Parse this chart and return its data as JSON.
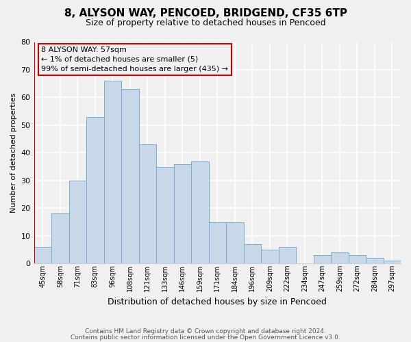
{
  "title": "8, ALYSON WAY, PENCOED, BRIDGEND, CF35 6TP",
  "subtitle": "Size of property relative to detached houses in Pencoed",
  "xlabel": "Distribution of detached houses by size in Pencoed",
  "ylabel": "Number of detached properties",
  "categories": [
    "45sqm",
    "58sqm",
    "71sqm",
    "83sqm",
    "96sqm",
    "108sqm",
    "121sqm",
    "133sqm",
    "146sqm",
    "159sqm",
    "171sqm",
    "184sqm",
    "196sqm",
    "209sqm",
    "222sqm",
    "234sqm",
    "247sqm",
    "259sqm",
    "272sqm",
    "284sqm",
    "297sqm"
  ],
  "values": [
    6,
    18,
    30,
    53,
    66,
    63,
    43,
    35,
    36,
    37,
    15,
    15,
    7,
    5,
    6,
    0,
    3,
    4,
    3,
    2,
    1
  ],
  "bar_color": "#c8d8e8",
  "bar_edge_color": "#7aabcc",
  "marker_color": "#cc0000",
  "ylim": [
    0,
    80
  ],
  "yticks": [
    0,
    10,
    20,
    30,
    40,
    50,
    60,
    70,
    80
  ],
  "annotation_line1": "8 ALYSON WAY: 57sqm",
  "annotation_line2": "← 1% of detached houses are smaller (5)",
  "annotation_line3": "99% of semi-detached houses are larger (435) →",
  "annotation_box_edge": "#cc0000",
  "footer1": "Contains HM Land Registry data © Crown copyright and database right 2024.",
  "footer2": "Contains public sector information licensed under the Open Government Licence v3.0.",
  "bg_color": "#f0f0f0",
  "title_fontsize": 11,
  "subtitle_fontsize": 9
}
